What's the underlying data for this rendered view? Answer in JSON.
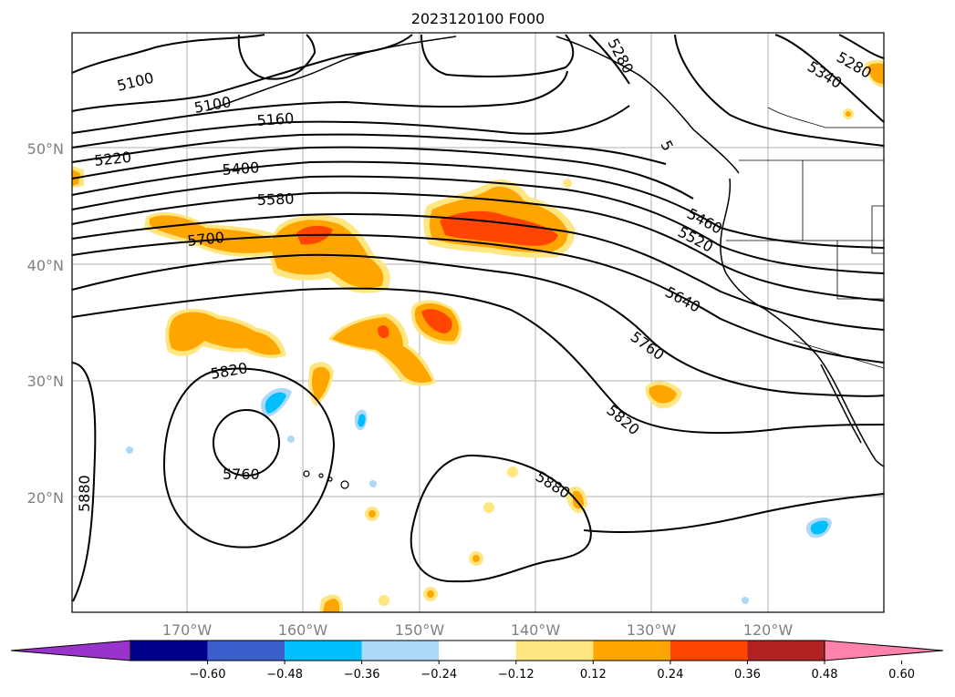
{
  "title": "2023120100 F000",
  "map": {
    "lat_labels": [
      "50°N",
      "40°N",
      "30°N",
      "20°N"
    ],
    "lon_labels": [
      "170°W",
      "160°W",
      "150°W",
      "140°W",
      "130°W",
      "120°W"
    ]
  },
  "contour_labels": [
    "5100",
    "5100",
    "5160",
    "5220",
    "5400",
    "5580",
    "5700",
    "5460",
    "5520",
    "5640",
    "5760",
    "5820",
    "5820",
    "5760",
    "5880",
    "5880",
    "5340",
    "5280",
    "5280",
    "5"
  ],
  "colorbar": {
    "ticks": [
      "−0.60",
      "−0.48",
      "−0.36",
      "−0.24",
      "−0.12",
      "0.12",
      "0.24",
      "0.36",
      "0.48",
      "0.60"
    ],
    "colors": [
      "#9933cc",
      "#00008b",
      "#3a5fcd",
      "#00bfff",
      "#add8f7",
      "#ffffff",
      "#ffe680",
      "#ffa500",
      "#ff4500",
      "#b22222",
      "#ff82ab"
    ]
  },
  "field_colors": {
    "contour": "#000000",
    "coast": "#000000",
    "grid": "#b0b0b0"
  }
}
